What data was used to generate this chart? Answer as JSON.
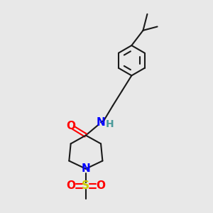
{
  "bg_color": "#e8e8e8",
  "bond_color": "#1a1a1a",
  "bond_width": 1.5,
  "o_color": "#ff0000",
  "n_color": "#0000ff",
  "s_color": "#cccc00",
  "h_color": "#4a9a9a",
  "font_size": 9,
  "xlim": [
    0,
    10
  ],
  "ylim": [
    0,
    10
  ]
}
